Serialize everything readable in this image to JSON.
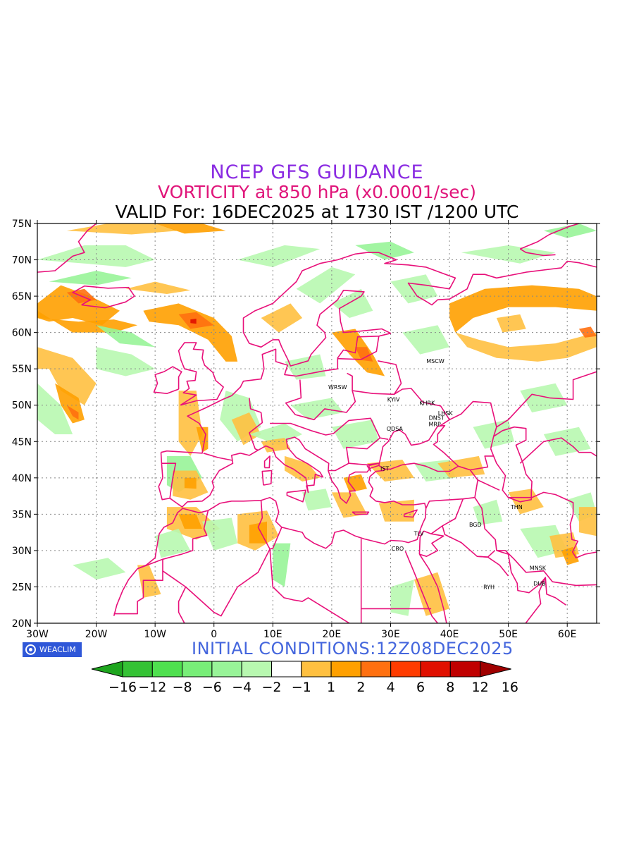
{
  "header": {
    "line1": "NCEP GFS GUIDANCE",
    "line2": "VORTICITY at 850 hPa (x0.0001/sec)",
    "line3": "VALID For: 16DEC2025 at 1730 IST /1200 UTC"
  },
  "footer": {
    "init": "INITIAL CONDITIONS:12Z08DEC2025",
    "logo_text": "WEACLIM"
  },
  "map": {
    "lon_range": [
      -30,
      65
    ],
    "lat_range": [
      20,
      75
    ],
    "lon_ticks": [
      {
        "v": -30,
        "label": "30W"
      },
      {
        "v": -20,
        "label": "20W"
      },
      {
        "v": -10,
        "label": "10W"
      },
      {
        "v": 0,
        "label": "0"
      },
      {
        "v": 10,
        "label": "10E"
      },
      {
        "v": 20,
        "label": "20E"
      },
      {
        "v": 30,
        "label": "30E"
      },
      {
        "v": 40,
        "label": "40E"
      },
      {
        "v": 50,
        "label": "50E"
      },
      {
        "v": 60,
        "label": "60E"
      }
    ],
    "lat_ticks": [
      {
        "v": 20,
        "label": "20N"
      },
      {
        "v": 25,
        "label": "25N"
      },
      {
        "v": 30,
        "label": "30N"
      },
      {
        "v": 35,
        "label": "35N"
      },
      {
        "v": 40,
        "label": "40N"
      },
      {
        "v": 45,
        "label": "45N"
      },
      {
        "v": 50,
        "label": "50N"
      },
      {
        "v": 55,
        "label": "55N"
      },
      {
        "v": 60,
        "label": "60N"
      },
      {
        "v": 65,
        "label": "65N"
      },
      {
        "v": 70,
        "label": "70N"
      },
      {
        "v": 75,
        "label": "75N"
      }
    ],
    "cities": [
      {
        "name": "MSCW",
        "lon": 37.6,
        "lat": 55.8
      },
      {
        "name": "WRSW",
        "lon": 21.0,
        "lat": 52.2
      },
      {
        "name": "KYIV",
        "lon": 30.5,
        "lat": 50.5
      },
      {
        "name": "KHRK",
        "lon": 36.2,
        "lat": 50.0
      },
      {
        "name": "LHSK",
        "lon": 39.3,
        "lat": 48.6
      },
      {
        "name": "DNST",
        "lon": 37.8,
        "lat": 48.0
      },
      {
        "name": "MRP",
        "lon": 37.5,
        "lat": 47.1
      },
      {
        "name": "ODSA",
        "lon": 30.7,
        "lat": 46.5
      },
      {
        "name": "IST",
        "lon": 29.0,
        "lat": 41.0
      },
      {
        "name": "THN",
        "lon": 51.4,
        "lat": 35.7
      },
      {
        "name": "BGD",
        "lon": 44.4,
        "lat": 33.3
      },
      {
        "name": "TLV",
        "lon": 34.8,
        "lat": 32.1
      },
      {
        "name": "CRO",
        "lon": 31.2,
        "lat": 30.0
      },
      {
        "name": "MNSK",
        "lon": 55.0,
        "lat": 27.3
      },
      {
        "name": "DUB",
        "lon": 55.3,
        "lat": 25.2
      },
      {
        "name": "RYH",
        "lon": 46.7,
        "lat": 24.7
      }
    ],
    "colors": {
      "boundary": "#e8107a",
      "grid": "#888888"
    }
  },
  "colorbar": {
    "labels": [
      "-16",
      "-12",
      "-8",
      "-6",
      "-4",
      "-2",
      "-1",
      "1",
      "2",
      "4",
      "6",
      "8",
      "12",
      "16"
    ],
    "colors": [
      "#1ea51e",
      "#35c235",
      "#4fe04f",
      "#78ee78",
      "#98f498",
      "#b8f8b0",
      "#ffffff",
      "#ffc040",
      "#ffa000",
      "#ff7010",
      "#ff3c00",
      "#e01000",
      "#c00000",
      "#a00000"
    ]
  }
}
